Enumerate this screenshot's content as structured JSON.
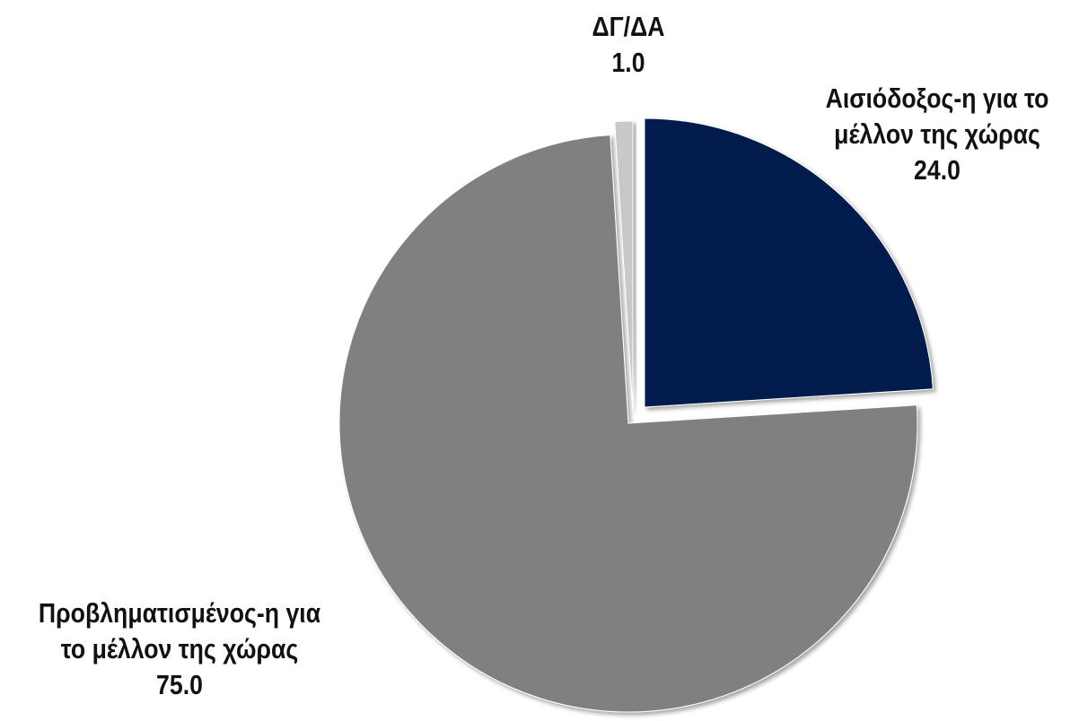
{
  "chart_data": {
    "type": "pie",
    "slices": [
      {
        "label_lines": [
          "Αισιόδοξος-η για το",
          "μέλλον της χώρας"
        ],
        "value": 24.0,
        "value_label": "24.0",
        "color": "#041a4e"
      },
      {
        "label_lines": [
          "Προβληματισμένος-η για",
          "το μέλλον της χώρας"
        ],
        "value": 75.0,
        "value_label": "75.0",
        "color": "#808080"
      },
      {
        "label_lines": [
          "ΔΓ/ΔΑ"
        ],
        "value": 1.0,
        "value_label": "1.0",
        "color": "#c8c8c8"
      }
    ],
    "start_angle_deg": 0,
    "direction": "clockwise",
    "exploded": true,
    "legend": "none"
  }
}
